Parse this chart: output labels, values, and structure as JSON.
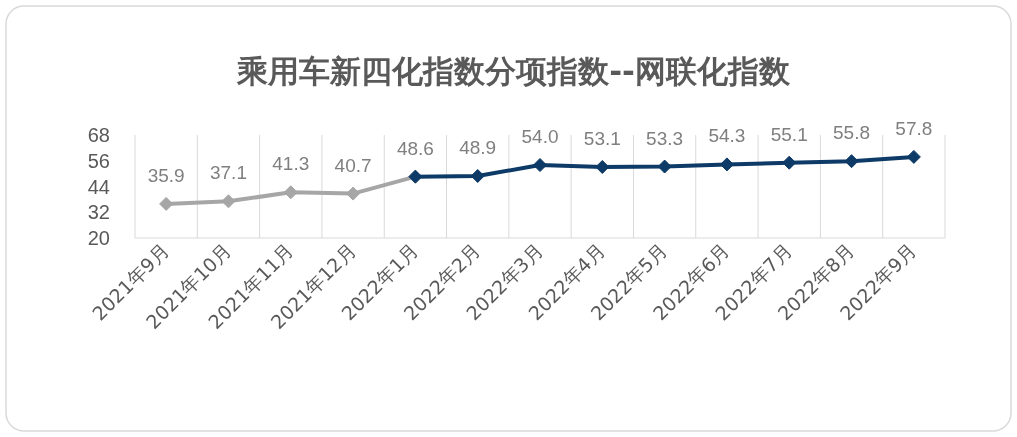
{
  "chart_data": {
    "type": "line",
    "title": "乘用车新四化指数分项指数--网联化指数",
    "categories": [
      "2021年9月",
      "2021年10月",
      "2021年11月",
      "2021年12月",
      "2022年1月",
      "2022年2月",
      "2022年3月",
      "2022年4月",
      "2022年5月",
      "2022年6月",
      "2022年7月",
      "2022年8月",
      "2022年9月"
    ],
    "series": [
      {
        "color": "#a6a6a6",
        "values": [
          35.9,
          37.1,
          41.3,
          40.7,
          48.6,
          null,
          null,
          null,
          null,
          null,
          null,
          null,
          null
        ],
        "value_labels": [
          "35.9",
          "37.1",
          "41.3",
          "40.7",
          "48.6",
          null,
          null,
          null,
          null,
          null,
          null,
          null,
          null
        ]
      },
      {
        "color": "#0d3a66",
        "values": [
          null,
          null,
          null,
          null,
          48.6,
          48.9,
          54.0,
          53.1,
          53.3,
          54.3,
          55.1,
          55.8,
          57.8
        ],
        "value_labels": [
          null,
          null,
          null,
          null,
          null,
          "48.9",
          "54.0",
          "53.1",
          "53.3",
          "54.3",
          "55.1",
          "55.8",
          "57.8"
        ]
      }
    ],
    "ylim": [
      20,
      68
    ],
    "yticks": [
      20,
      32,
      44,
      56,
      68
    ],
    "grid": "x",
    "marker": "diamond",
    "line_style": "solid"
  }
}
